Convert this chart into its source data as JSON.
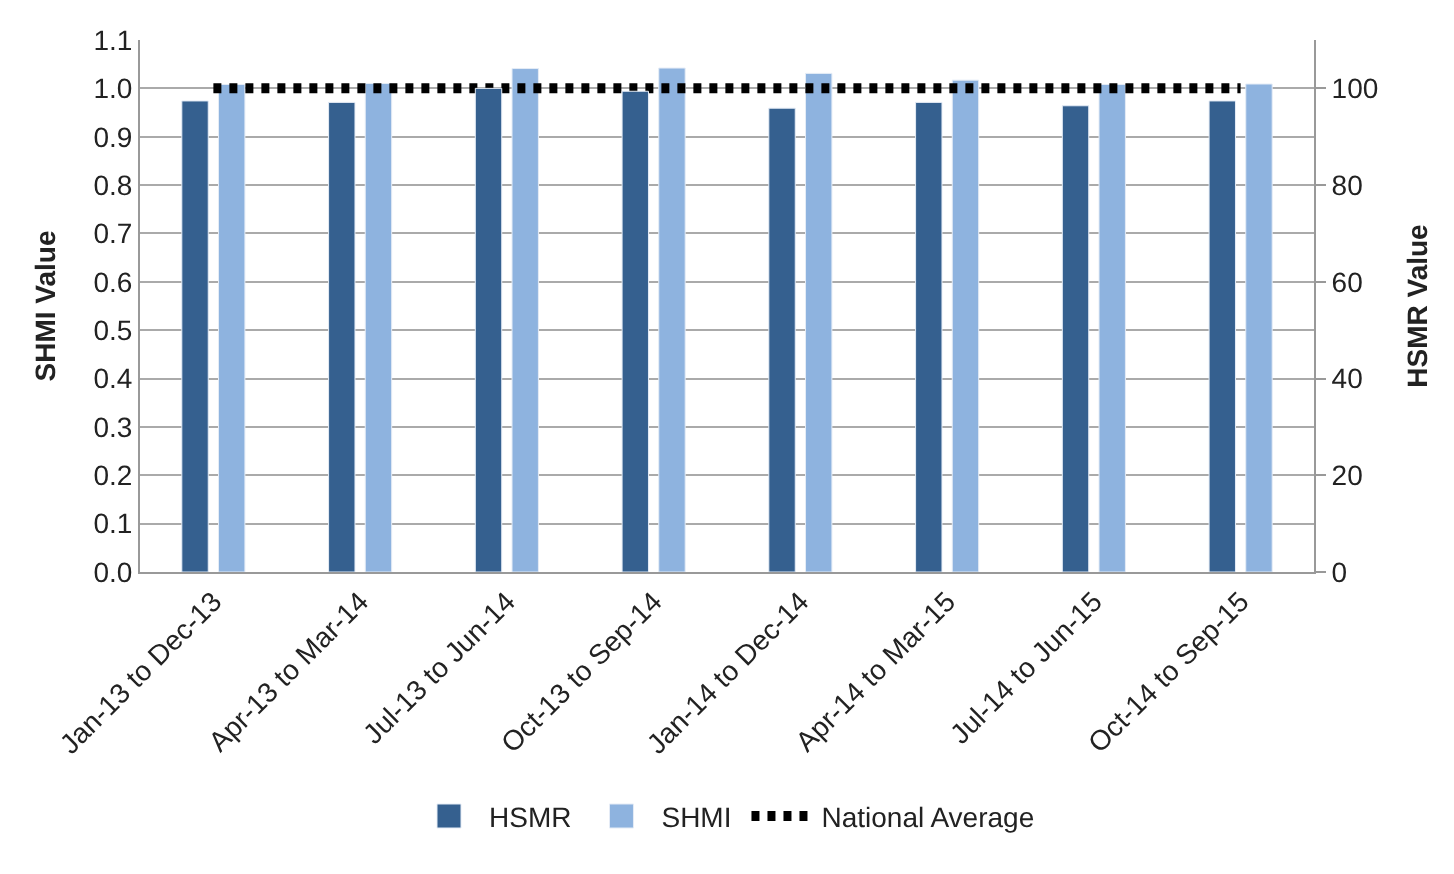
{
  "chart_data": {
    "type": "bar",
    "ylabel": "SHMI Value",
    "y2label": "HSMR Value",
    "categories": [
      "Jan-13 to Dec-13",
      "Apr-13 to Mar-14",
      "Jul-13 to Jun-14",
      "Oct-13 to Sep-14",
      "Jan-14 to Dec-14",
      "Apr-14 to Mar-15",
      "Jul-14 to Jun-15",
      "Oct-14 to Sep-15"
    ],
    "series": [
      {
        "name": "HSMR",
        "color": "#35608f",
        "axis": "y2",
        "values": [
          97.4,
          97.1,
          100,
          99.4,
          95.9,
          97.1,
          96.4,
          97.4
        ]
      },
      {
        "name": "SHMI",
        "color": "#8eb3df",
        "values": [
          1.008,
          1.01,
          1.041,
          1.042,
          1.031,
          1.017,
          1.008,
          1.009
        ]
      },
      {
        "name": "National Average",
        "type": "line",
        "color": "#000000",
        "line_style": "dotted",
        "values": [
          1.0,
          1.0,
          1.0,
          1.0,
          1.0,
          1.0,
          1.0,
          1.0
        ]
      }
    ],
    "ylim": [
      0,
      1.1
    ],
    "yticks": [
      {
        "value": 0,
        "label": "0.0"
      },
      {
        "value": 0.1,
        "label": "0.1"
      },
      {
        "value": 0.2,
        "label": "0.2"
      },
      {
        "value": 0.3,
        "label": "0.3"
      },
      {
        "value": 0.4,
        "label": "0.4"
      },
      {
        "value": 0.5,
        "label": "0.5"
      },
      {
        "value": 0.6,
        "label": "0.6"
      },
      {
        "value": 0.7,
        "label": "0.7"
      },
      {
        "value": 0.8,
        "label": "0.8"
      },
      {
        "value": 0.9,
        "label": "0.9"
      },
      {
        "value": 1.0,
        "label": "1.0"
      },
      {
        "value": 1.1,
        "label": "1.1"
      }
    ],
    "y2lim": [
      0,
      110
    ],
    "y2ticks": [
      0,
      20,
      40,
      60,
      80,
      100
    ],
    "grid": "y",
    "legend": "bottom"
  }
}
